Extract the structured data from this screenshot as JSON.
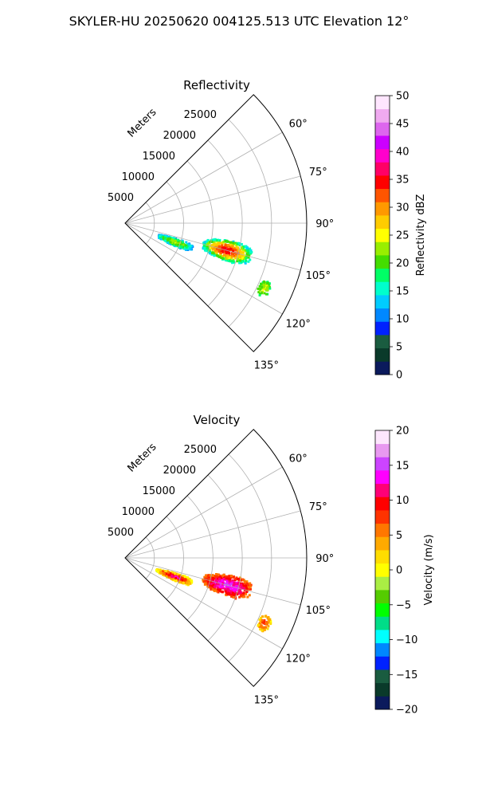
{
  "figure": {
    "suptitle": "SKYLER-HU  20250620  004125.513 UTC Elevation 12°"
  },
  "chart_data": [
    {
      "type": "heatmap",
      "projection": "polar-sector",
      "title": "Reflectivity",
      "range_axis_label": "Meters",
      "range_ticks": [
        5000,
        10000,
        15000,
        20000,
        25000
      ],
      "range_tick_labels": [
        "5000",
        "10000",
        "15000",
        "20000",
        "25000"
      ],
      "rlim": [
        0,
        31000
      ],
      "azimuth_range_deg": [
        45,
        135
      ],
      "azimuth_ticks": [
        60,
        75,
        90,
        105,
        120,
        135
      ],
      "azimuth_tick_labels": [
        "60°",
        "75°",
        "90°",
        "105°",
        "120°",
        "135°"
      ],
      "grid": true,
      "colorbar": {
        "label": "Reflectivity dBZ",
        "range": [
          0,
          50
        ],
        "ticks": [
          0,
          5,
          10,
          15,
          20,
          25,
          30,
          35,
          40,
          45,
          50
        ],
        "tick_labels": [
          "0",
          "5",
          "10",
          "15",
          "20",
          "25",
          "30",
          "35",
          "40",
          "45",
          "50"
        ]
      },
      "echo_regions": [
        {
          "azimuth_range_deg": [
            106,
            114
          ],
          "range_m": [
            5500,
            12000
          ],
          "value_range": [
            12,
            24
          ]
        },
        {
          "azimuth_range_deg": [
            99,
            110
          ],
          "range_m": [
            13500,
            22000
          ],
          "value_range": [
            15,
            35
          ]
        },
        {
          "azimuth_range_deg": [
            112,
            118
          ],
          "range_m": [
            25000,
            27000
          ],
          "value_range": [
            18,
            24
          ]
        }
      ]
    },
    {
      "type": "heatmap",
      "projection": "polar-sector",
      "title": "Velocity",
      "range_axis_label": "Meters",
      "range_ticks": [
        5000,
        10000,
        15000,
        20000,
        25000
      ],
      "range_tick_labels": [
        "5000",
        "10000",
        "15000",
        "20000",
        "25000"
      ],
      "rlim": [
        0,
        31000
      ],
      "azimuth_range_deg": [
        45,
        135
      ],
      "azimuth_ticks": [
        60,
        75,
        90,
        105,
        120,
        135
      ],
      "azimuth_tick_labels": [
        "60°",
        "75°",
        "90°",
        "105°",
        "120°",
        "135°"
      ],
      "grid": true,
      "colorbar": {
        "label": "Velocity (m/s)",
        "range": [
          -20,
          20
        ],
        "ticks": [
          -20,
          -15,
          -10,
          -5,
          0,
          5,
          10,
          15,
          20
        ],
        "tick_labels": [
          "−20",
          "−15",
          "−10",
          "−5",
          "0",
          "5",
          "10",
          "15",
          "20"
        ]
      },
      "echo_regions": [
        {
          "azimuth_range_deg": [
            106,
            114
          ],
          "range_m": [
            5500,
            12000
          ],
          "value_range": [
            0,
            12
          ]
        },
        {
          "azimuth_range_deg": [
            99,
            110
          ],
          "range_m": [
            13500,
            22000
          ],
          "value_range": [
            6,
            14
          ]
        },
        {
          "azimuth_range_deg": [
            112,
            118
          ],
          "range_m": [
            25000,
            27000
          ],
          "value_range": [
            2,
            8
          ]
        }
      ]
    }
  ],
  "colors": {
    "grid": "#b0b0b0",
    "frame": "#000000",
    "reflectivity_scale": [
      "#0b1a5c",
      "#0a3a2a",
      "#1a5c40",
      "#0022ff",
      "#0088ff",
      "#00ccff",
      "#00ffcc",
      "#00ff66",
      "#44dd00",
      "#99ee00",
      "#ffff00",
      "#ffcc00",
      "#ff9900",
      "#ff5500",
      "#ff0000",
      "#ff0066",
      "#ff00cc",
      "#cc00ff",
      "#dd66ee",
      "#f0aaf0",
      "#ffe6ff"
    ],
    "velocity_scale": [
      "#0b1a5c",
      "#0a3a2a",
      "#1a5c40",
      "#0022ff",
      "#0088ff",
      "#00ffff",
      "#00dd88",
      "#00ff00",
      "#55cc00",
      "#aaee44",
      "#ffff00",
      "#ffdd00",
      "#ffaa00",
      "#ff7700",
      "#ff3300",
      "#ff0000",
      "#ff0077",
      "#ff00ff",
      "#cc44ff",
      "#e899f0",
      "#fde6fd"
    ]
  }
}
